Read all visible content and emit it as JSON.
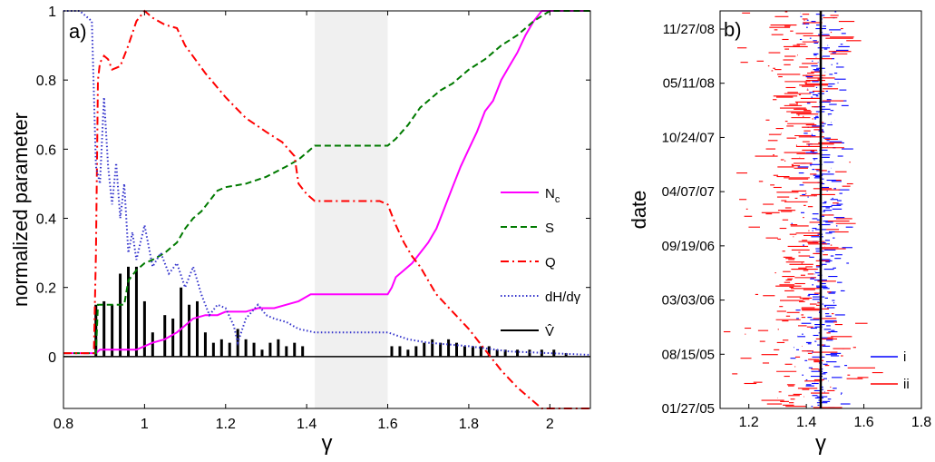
{
  "chart_data": [
    {
      "panel_label": "a)",
      "type": "line",
      "xlabel": "γ",
      "ylabel": "normalized parameter",
      "xlim": [
        0.8,
        2.1
      ],
      "ylim": [
        -0.15,
        1.0
      ],
      "xticks": [
        "0.8",
        "1",
        "1.2",
        "1.4",
        "1.6",
        "1.8",
        "2"
      ],
      "yticks": [
        "0",
        "0.2",
        "0.4",
        "0.6",
        "0.8",
        "1"
      ],
      "shaded_region": [
        1.42,
        1.6
      ],
      "legend": {
        "placement": "right",
        "entries": [
          {
            "label": "N",
            "subscript": "c",
            "color": "#ff00ff",
            "style": "solid"
          },
          {
            "label": "S",
            "color": "#007a00",
            "style": "dashed"
          },
          {
            "label": "Q",
            "color": "#ff0000",
            "style": "dashdot"
          },
          {
            "label": "dH/dγ",
            "color": "#3333cc",
            "style": "dotted"
          },
          {
            "label": "V̂",
            "color": "#000000",
            "style": "solid"
          }
        ]
      },
      "series": [
        {
          "name": "Nc",
          "color": "#ff00ff",
          "style": "solid",
          "points": [
            [
              0.8,
              0.01
            ],
            [
              0.88,
              0.01
            ],
            [
              0.89,
              0.02
            ],
            [
              0.92,
              0.02
            ],
            [
              0.95,
              0.02
            ],
            [
              0.98,
              0.02
            ],
            [
              1.0,
              0.03
            ],
            [
              1.02,
              0.04
            ],
            [
              1.05,
              0.05
            ],
            [
              1.08,
              0.07
            ],
            [
              1.1,
              0.09
            ],
            [
              1.12,
              0.11
            ],
            [
              1.15,
              0.12
            ],
            [
              1.18,
              0.12
            ],
            [
              1.2,
              0.13
            ],
            [
              1.25,
              0.13
            ],
            [
              1.28,
              0.14
            ],
            [
              1.32,
              0.14
            ],
            [
              1.35,
              0.15
            ],
            [
              1.38,
              0.16
            ],
            [
              1.41,
              0.18
            ],
            [
              1.5,
              0.18
            ],
            [
              1.6,
              0.18
            ],
            [
              1.61,
              0.2
            ],
            [
              1.62,
              0.23
            ],
            [
              1.64,
              0.25
            ],
            [
              1.66,
              0.27
            ],
            [
              1.68,
              0.3
            ],
            [
              1.7,
              0.33
            ],
            [
              1.72,
              0.37
            ],
            [
              1.74,
              0.43
            ],
            [
              1.76,
              0.49
            ],
            [
              1.78,
              0.55
            ],
            [
              1.8,
              0.6
            ],
            [
              1.82,
              0.65
            ],
            [
              1.84,
              0.71
            ],
            [
              1.86,
              0.74
            ],
            [
              1.88,
              0.8
            ],
            [
              1.9,
              0.84
            ],
            [
              1.92,
              0.88
            ],
            [
              1.94,
              0.93
            ],
            [
              1.96,
              0.97
            ],
            [
              1.98,
              1.0
            ],
            [
              2.0,
              1.0
            ],
            [
              2.1,
              1.0
            ]
          ]
        },
        {
          "name": "S",
          "color": "#007a00",
          "style": "dashed",
          "points": [
            [
              0.8,
              0.01
            ],
            [
              0.88,
              0.01
            ],
            [
              0.885,
              0.15
            ],
            [
              0.95,
              0.15
            ],
            [
              0.96,
              0.22
            ],
            [
              0.98,
              0.25
            ],
            [
              1.0,
              0.27
            ],
            [
              1.02,
              0.28
            ],
            [
              1.05,
              0.3
            ],
            [
              1.08,
              0.33
            ],
            [
              1.1,
              0.37
            ],
            [
              1.12,
              0.4
            ],
            [
              1.14,
              0.42
            ],
            [
              1.16,
              0.45
            ],
            [
              1.18,
              0.48
            ],
            [
              1.2,
              0.49
            ],
            [
              1.25,
              0.5
            ],
            [
              1.3,
              0.52
            ],
            [
              1.35,
              0.55
            ],
            [
              1.38,
              0.57
            ],
            [
              1.4,
              0.59
            ],
            [
              1.42,
              0.61
            ],
            [
              1.6,
              0.61
            ],
            [
              1.62,
              0.63
            ],
            [
              1.65,
              0.67
            ],
            [
              1.68,
              0.72
            ],
            [
              1.7,
              0.74
            ],
            [
              1.73,
              0.77
            ],
            [
              1.76,
              0.79
            ],
            [
              1.8,
              0.83
            ],
            [
              1.84,
              0.86
            ],
            [
              1.88,
              0.9
            ],
            [
              1.92,
              0.93
            ],
            [
              1.96,
              0.97
            ],
            [
              2.0,
              1.0
            ],
            [
              2.1,
              1.0
            ]
          ]
        },
        {
          "name": "Q",
          "color": "#ff0000",
          "style": "dashdot",
          "points": [
            [
              0.8,
              0.01
            ],
            [
              0.875,
              0.01
            ],
            [
              0.88,
              0.3
            ],
            [
              0.885,
              0.8
            ],
            [
              0.89,
              0.85
            ],
            [
              0.9,
              0.87
            ],
            [
              0.91,
              0.86
            ],
            [
              0.92,
              0.83
            ],
            [
              0.94,
              0.84
            ],
            [
              0.96,
              0.9
            ],
            [
              0.98,
              0.97
            ],
            [
              1.0,
              1.0
            ],
            [
              1.02,
              0.98
            ],
            [
              1.05,
              0.96
            ],
            [
              1.08,
              0.95
            ],
            [
              1.1,
              0.9
            ],
            [
              1.15,
              0.82
            ],
            [
              1.2,
              0.75
            ],
            [
              1.25,
              0.69
            ],
            [
              1.3,
              0.65
            ],
            [
              1.34,
              0.62
            ],
            [
              1.37,
              0.58
            ],
            [
              1.38,
              0.5
            ],
            [
              1.4,
              0.47
            ],
            [
              1.42,
              0.45
            ],
            [
              1.5,
              0.45
            ],
            [
              1.58,
              0.45
            ],
            [
              1.6,
              0.44
            ],
            [
              1.62,
              0.38
            ],
            [
              1.64,
              0.33
            ],
            [
              1.66,
              0.29
            ],
            [
              1.68,
              0.26
            ],
            [
              1.7,
              0.22
            ],
            [
              1.72,
              0.18
            ],
            [
              1.76,
              0.13
            ],
            [
              1.8,
              0.08
            ],
            [
              1.84,
              0.02
            ],
            [
              1.88,
              -0.04
            ],
            [
              1.92,
              -0.09
            ],
            [
              1.95,
              -0.12
            ],
            [
              1.98,
              -0.15
            ],
            [
              2.1,
              -0.15
            ]
          ]
        },
        {
          "name": "dH/dγ",
          "color": "#3333cc",
          "style": "dotted",
          "points": [
            [
              0.8,
              1.0
            ],
            [
              0.84,
              1.0
            ],
            [
              0.87,
              0.97
            ],
            [
              0.88,
              0.55
            ],
            [
              0.89,
              0.5
            ],
            [
              0.9,
              0.75
            ],
            [
              0.91,
              0.55
            ],
            [
              0.92,
              0.44
            ],
            [
              0.93,
              0.56
            ],
            [
              0.94,
              0.4
            ],
            [
              0.95,
              0.5
            ],
            [
              0.96,
              0.3
            ],
            [
              0.97,
              0.36
            ],
            [
              0.98,
              0.28
            ],
            [
              1.0,
              0.38
            ],
            [
              1.02,
              0.26
            ],
            [
              1.04,
              0.3
            ],
            [
              1.06,
              0.24
            ],
            [
              1.08,
              0.27
            ],
            [
              1.1,
              0.2
            ],
            [
              1.12,
              0.26
            ],
            [
              1.14,
              0.18
            ],
            [
              1.16,
              0.12
            ],
            [
              1.18,
              0.15
            ],
            [
              1.2,
              0.14
            ],
            [
              1.22,
              0.09
            ],
            [
              1.23,
              0.04
            ],
            [
              1.25,
              0.11
            ],
            [
              1.28,
              0.15
            ],
            [
              1.3,
              0.12
            ],
            [
              1.32,
              0.11
            ],
            [
              1.35,
              0.1
            ],
            [
              1.38,
              0.08
            ],
            [
              1.42,
              0.07
            ],
            [
              1.5,
              0.07
            ],
            [
              1.6,
              0.07
            ],
            [
              1.65,
              0.05
            ],
            [
              1.7,
              0.04
            ],
            [
              1.8,
              0.03
            ],
            [
              1.9,
              0.015
            ],
            [
              2.0,
              0.01
            ],
            [
              2.1,
              0.005
            ]
          ]
        }
      ],
      "bars": {
        "name": "V̂",
        "color": "#000000",
        "x": [
          0.88,
          0.9,
          0.92,
          0.94,
          0.96,
          0.98,
          1.0,
          1.02,
          1.05,
          1.07,
          1.09,
          1.11,
          1.13,
          1.15,
          1.17,
          1.19,
          1.21,
          1.23,
          1.25,
          1.27,
          1.29,
          1.31,
          1.33,
          1.35,
          1.37,
          1.39,
          1.61,
          1.63,
          1.65,
          1.67,
          1.69,
          1.71,
          1.73,
          1.75,
          1.77,
          1.79,
          1.81,
          1.83,
          1.85,
          1.87,
          1.89,
          1.92,
          1.95,
          1.98,
          2.01,
          2.04
        ],
        "values": [
          0.15,
          0.16,
          0.15,
          0.24,
          0.26,
          0.26,
          0.16,
          0.07,
          0.12,
          0.11,
          0.2,
          0.15,
          0.16,
          0.07,
          0.04,
          0.05,
          0.04,
          0.08,
          0.05,
          0.04,
          0.02,
          0.04,
          0.05,
          0.03,
          0.04,
          0.03,
          0.03,
          0.03,
          0.02,
          0.03,
          0.04,
          0.05,
          0.04,
          0.05,
          0.04,
          0.03,
          0.03,
          0.03,
          0.03,
          0.02,
          0.02,
          0.02,
          0.02,
          0.02,
          0.02,
          0.01
        ]
      }
    },
    {
      "panel_label": "b)",
      "type": "line",
      "xlabel": "γ",
      "ylabel": "date",
      "xlim": [
        1.1,
        1.8
      ],
      "xticks": [
        "1.2",
        "1.4",
        "1.6",
        "1.8"
      ],
      "yticks": [
        "01/27/05",
        "08/15/05",
        "03/03/06",
        "09/19/06",
        "04/07/07",
        "10/24/07",
        "05/11/08",
        "11/27/08"
      ],
      "vertical_line_x": 1.45,
      "legend": {
        "placement": "bottom-right",
        "entries": [
          {
            "label": "i",
            "color": "#0000ff"
          },
          {
            "label": "ii",
            "color": "#ff0000"
          }
        ]
      },
      "series": [
        {
          "name": "i",
          "color": "#0000ff",
          "center": 1.45,
          "spread": 0.07
        },
        {
          "name": "ii",
          "color": "#ff0000",
          "center": 1.37,
          "spread": 0.16
        }
      ]
    }
  ]
}
